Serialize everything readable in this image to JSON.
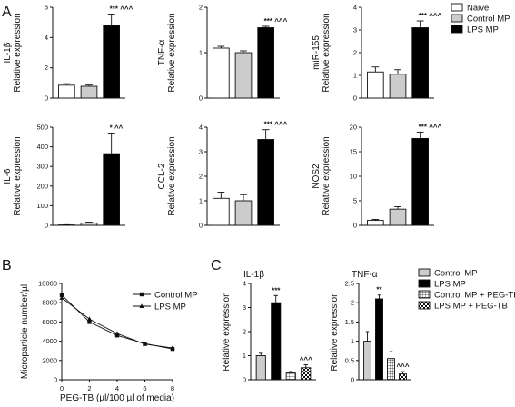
{
  "panels": {
    "A": "A",
    "B": "B",
    "C": "C"
  },
  "legend_A": [
    "Naive",
    "Control MP",
    "LPS MP"
  ],
  "legend_C": [
    "Control MP",
    "LPS MP",
    "Control MP + PEG-TB",
    "LPS MP + PEG-TB"
  ],
  "colors": {
    "naive": "#ffffff",
    "control": "#cccccc",
    "lps": "#000000",
    "stroke": "#111111"
  },
  "chart_data": [
    {
      "type": "bar",
      "panel": "A",
      "ylabel": [
        "IL-1β",
        "Relative expression"
      ],
      "categories": [
        "Naive",
        "Control MP",
        "LPS MP"
      ],
      "values": [
        0.85,
        0.78,
        4.8
      ],
      "errors": [
        0.1,
        0.08,
        0.75
      ],
      "ylim": [
        0,
        6
      ],
      "yticks": [
        0,
        2,
        4,
        6
      ],
      "significance": "*** ^^^"
    },
    {
      "type": "bar",
      "panel": "A",
      "ylabel": [
        "TNF-α",
        "Relative expression"
      ],
      "categories": [
        "Naive",
        "Control MP",
        "LPS MP"
      ],
      "values": [
        1.1,
        1.0,
        1.55
      ],
      "errors": [
        0.04,
        0.04,
        0.03
      ],
      "ylim": [
        0,
        2
      ],
      "yticks": [
        0,
        1,
        2
      ],
      "significance": "*** ^^^"
    },
    {
      "type": "bar",
      "panel": "A",
      "ylabel": [
        "miR-155",
        "Relative expression"
      ],
      "categories": [
        "Naive",
        "Control MP",
        "LPS MP"
      ],
      "values": [
        1.15,
        1.05,
        3.1
      ],
      "errors": [
        0.22,
        0.2,
        0.3
      ],
      "ylim": [
        0,
        4
      ],
      "yticks": [
        0,
        1,
        2,
        3,
        4
      ],
      "significance": "*** ^^^"
    },
    {
      "type": "bar",
      "panel": "A",
      "ylabel": [
        "IL-6",
        "Relative expression"
      ],
      "categories": [
        "Naive",
        "Control MP",
        "LPS MP"
      ],
      "values": [
        2,
        12,
        365
      ],
      "errors": [
        1,
        4,
        105
      ],
      "ylim": [
        0,
        500
      ],
      "yticks": [
        0,
        100,
        200,
        300,
        400,
        500
      ],
      "significance": "* ^^"
    },
    {
      "type": "bar",
      "panel": "A",
      "ylabel": [
        "CCL-2",
        "Relative expression"
      ],
      "categories": [
        "Naive",
        "Control MP",
        "LPS MP"
      ],
      "values": [
        1.1,
        1.0,
        3.5
      ],
      "errors": [
        0.25,
        0.25,
        0.4
      ],
      "ylim": [
        0,
        4
      ],
      "yticks": [
        0,
        1,
        2,
        3,
        4
      ],
      "significance": "*** ^^^"
    },
    {
      "type": "bar",
      "panel": "A",
      "ylabel": [
        "NOS2",
        "Relative expression"
      ],
      "categories": [
        "Naive",
        "Control MP",
        "LPS MP"
      ],
      "values": [
        1,
        3.3,
        17.7
      ],
      "errors": [
        0.2,
        0.5,
        1.3
      ],
      "ylim": [
        0,
        20
      ],
      "yticks": [
        0,
        5,
        10,
        15,
        20
      ],
      "significance": "*** ^^^"
    },
    {
      "type": "line",
      "panel": "B",
      "xlabel": "PEG-TB (µl/100 µl of media)",
      "ylabel": "Microparticle number/µl",
      "x": [
        0,
        2,
        4,
        6,
        8
      ],
      "series": [
        {
          "name": "Control MP",
          "marker": "square",
          "values": [
            8800,
            6000,
            4600,
            3750,
            3200
          ],
          "errors": [
            200,
            150,
            120,
            100,
            120
          ]
        },
        {
          "name": "LPS MP",
          "marker": "triangle",
          "values": [
            8500,
            6300,
            4800,
            3700,
            3300
          ],
          "errors": [
            200,
            150,
            120,
            100,
            120
          ]
        }
      ],
      "xlim": [
        0,
        8
      ],
      "xticks": [
        0,
        2,
        4,
        6,
        8
      ],
      "ylim": [
        0,
        10000
      ],
      "yticks": [
        0,
        2000,
        4000,
        6000,
        8000,
        10000
      ]
    },
    {
      "type": "bar",
      "panel": "C",
      "title": "IL-1β",
      "ylabel": "Relative expression",
      "categories": [
        "Control MP",
        "LPS MP",
        "Control MP + PEG-TB",
        "LPS MP + PEG-TB"
      ],
      "values": [
        1.0,
        3.2,
        0.28,
        0.5
      ],
      "errors": [
        0.1,
        0.3,
        0.06,
        0.12
      ],
      "ylim": [
        0,
        4
      ],
      "yticks": [
        0,
        1,
        2,
        3,
        4
      ],
      "annotations": [
        "",
        "***",
        "",
        "^^^"
      ]
    },
    {
      "type": "bar",
      "panel": "C",
      "title": "TNF-α",
      "ylabel": "Relative expression",
      "categories": [
        "Control MP",
        "LPS MP",
        "Control MP + PEG-TB",
        "LPS MP + PEG-TB"
      ],
      "values": [
        1.0,
        2.1,
        0.55,
        0.15
      ],
      "errors": [
        0.25,
        0.1,
        0.18,
        0.06
      ],
      "ylim": [
        0,
        2.5
      ],
      "yticks": [
        0,
        0.5,
        1.0,
        1.5,
        2.0,
        2.5
      ],
      "annotations": [
        "",
        "**",
        "",
        "^^^"
      ]
    }
  ]
}
